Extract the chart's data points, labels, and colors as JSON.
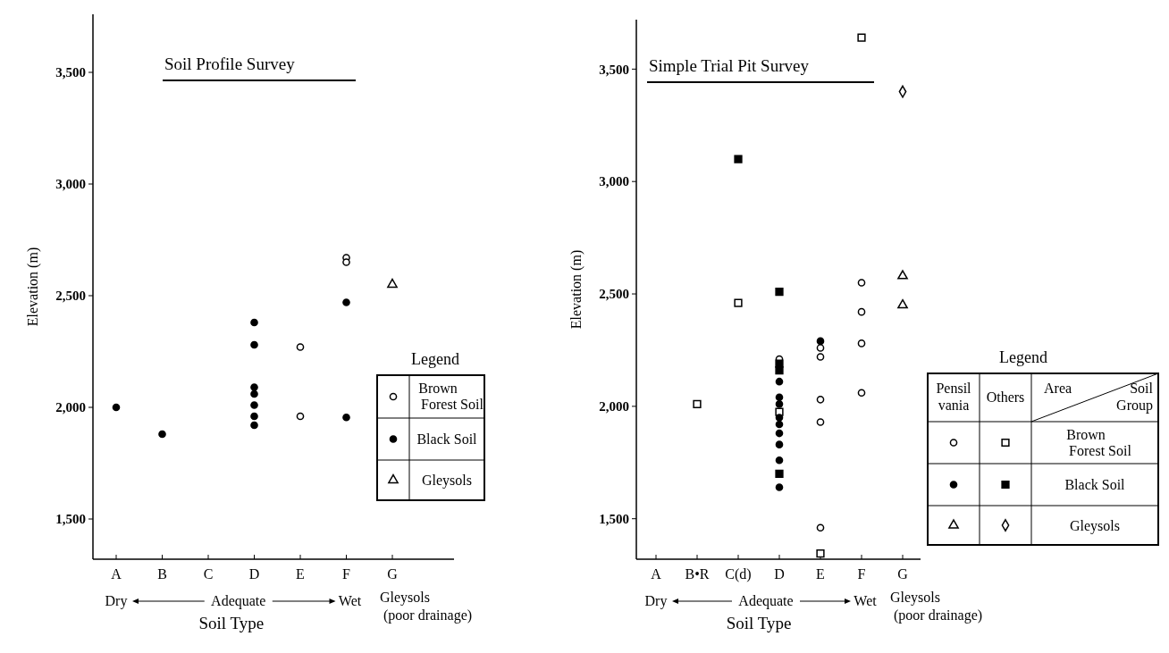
{
  "chart_data": [
    {
      "type": "scatter",
      "title": "Soil Profile Survey",
      "xlabel": "Soil Type",
      "ylabel": "Elevation (m)",
      "legend_title": "Legend",
      "legend": "right",
      "grid": false,
      "categories": [
        "A",
        "B",
        "C",
        "D",
        "E",
        "F",
        "G"
      ],
      "ylim": [
        1320,
        3760
      ],
      "yticks": [
        {
          "value": 1500,
          "label": "1,500"
        },
        {
          "value": 2000,
          "label": "2,000"
        },
        {
          "value": 2500,
          "label": "2,500"
        },
        {
          "value": 3000,
          "label": "3,000"
        },
        {
          "value": 3500,
          "label": "3,500"
        }
      ],
      "annotations": [
        "Dry",
        "Adequate",
        "Wet",
        "Gleysols (poor drainage)"
      ],
      "series": [
        {
          "name": "Brown Forest Soil",
          "marker": "circle",
          "color": "#ffffff",
          "x": [
            "E",
            "E",
            "F",
            "F"
          ],
          "values": [
            2270,
            1960,
            2670,
            2650
          ]
        },
        {
          "name": "Black Soil",
          "marker": "circle",
          "color": "#000000",
          "x": [
            "A",
            "B",
            "D",
            "D",
            "D",
            "D",
            "D",
            "D",
            "D",
            "F",
            "F"
          ],
          "values": [
            2000,
            1880,
            2380,
            2280,
            2090,
            2060,
            2010,
            1960,
            1920,
            2470,
            1955
          ]
        },
        {
          "name": "Gleysols",
          "marker": "triangle",
          "color": "#ffffff",
          "x": [
            "G"
          ],
          "values": [
            2550
          ]
        }
      ]
    },
    {
      "type": "scatter",
      "title": "Simple Trial Pit Survey",
      "xlabel": "Soil Type",
      "ylabel": "Elevation (m)",
      "legend_title": "Legend",
      "legend": "right",
      "grid": false,
      "categories": [
        "A",
        "B•R",
        "C(d)",
        "D",
        "E",
        "F",
        "G"
      ],
      "ylim": [
        1320,
        3720
      ],
      "yticks": [
        {
          "value": 1500,
          "label": "1,500"
        },
        {
          "value": 2000,
          "label": "2,000"
        },
        {
          "value": 2500,
          "label": "2,500"
        },
        {
          "value": 3000,
          "label": "3,000"
        },
        {
          "value": 3500,
          "label": "3,500"
        }
      ],
      "annotations": [
        "Dry",
        "Adequate",
        "Wet",
        "Gleysols (poor drainage)",
        "Pensil vania",
        "Others",
        "Area",
        "Soil Group",
        "Brown Forest Soil",
        "Black Soil",
        "Gleysols"
      ],
      "series": [
        {
          "marker": "circle",
          "color": "#ffffff",
          "x": [
            "D",
            "E",
            "E",
            "E",
            "E",
            "E",
            "F",
            "F",
            "F",
            "F"
          ],
          "values": [
            2210,
            2260,
            2220,
            2030,
            1930,
            1460,
            2550,
            2420,
            2280,
            2060
          ]
        },
        {
          "marker": "square",
          "color": "#ffffff",
          "x": [
            "B•R",
            "C(d)",
            "D",
            "E",
            "F"
          ],
          "values": [
            2010,
            2460,
            1975,
            1345,
            3640
          ]
        },
        {
          "marker": "circle",
          "color": "#000000",
          "x": [
            "D",
            "D",
            "D",
            "D",
            "D",
            "D",
            "D",
            "D",
            "D",
            "E"
          ],
          "values": [
            2110,
            2040,
            2010,
            1950,
            1920,
            1880,
            1830,
            1760,
            1640,
            2290
          ]
        },
        {
          "marker": "square",
          "color": "#000000",
          "x": [
            "C(d)",
            "D",
            "D",
            "D",
            "D"
          ],
          "values": [
            3100,
            2510,
            2190,
            2160,
            1700
          ]
        },
        {
          "marker": "triangle",
          "color": "#ffffff",
          "x": [
            "G",
            "G"
          ],
          "values": [
            2580,
            2450
          ]
        },
        {
          "marker": "diamond",
          "color": "#ffffff",
          "x": [
            "G"
          ],
          "values": [
            3400
          ]
        }
      ]
    }
  ]
}
